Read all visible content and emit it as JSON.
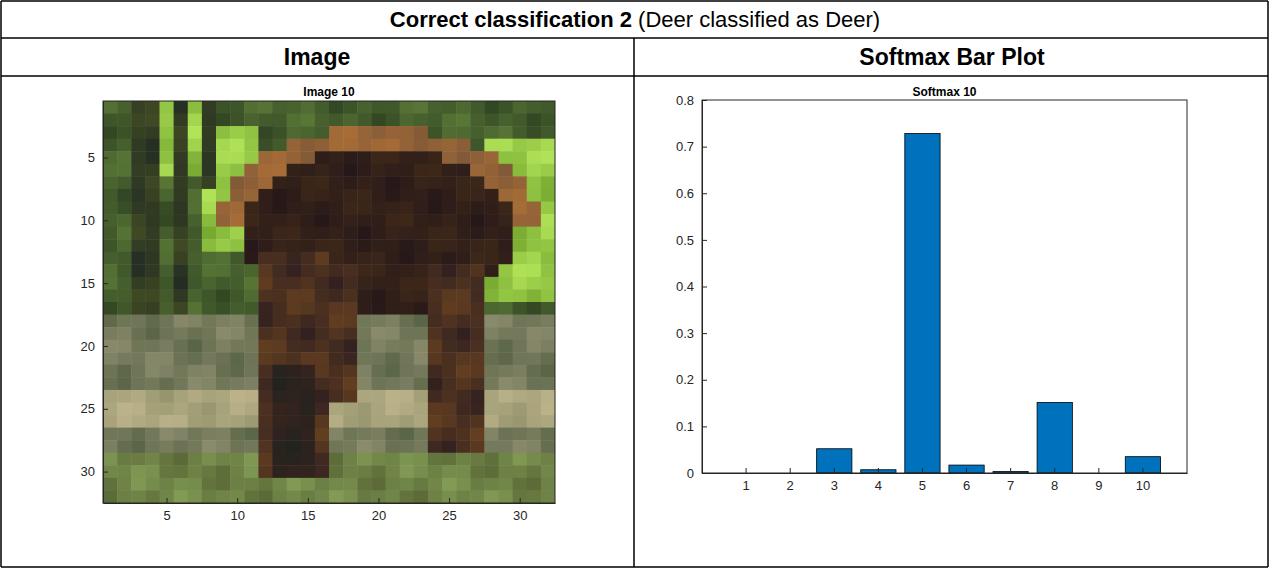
{
  "table": {
    "title": "Correct classification 2",
    "subtitle": "(Deer classified as Deer)",
    "headers": [
      "Image",
      "Softmax Bar Plot"
    ]
  },
  "chart_data": [
    {
      "type": "image",
      "title": "Image 10",
      "xlim": [
        0.5,
        32.5
      ],
      "xticks": [
        5,
        10,
        15,
        20,
        25,
        30
      ],
      "ylim": [
        0.5,
        32.5
      ],
      "yticks": [
        5,
        10,
        15,
        20,
        25,
        30
      ]
    },
    {
      "type": "bar",
      "title": "Softmax 10",
      "categories": [
        1,
        2,
        3,
        4,
        5,
        6,
        7,
        8,
        9,
        10
      ],
      "values": [
        0,
        0,
        0.052,
        0.007,
        0.728,
        0.017,
        0.003,
        0.151,
        0,
        0.035
      ],
      "color": "#0072bd",
      "ylim": [
        0,
        0.8
      ],
      "yticks": [
        0,
        0.1,
        0.2,
        0.3,
        0.4,
        0.5,
        0.6,
        0.7,
        0.8
      ]
    }
  ]
}
